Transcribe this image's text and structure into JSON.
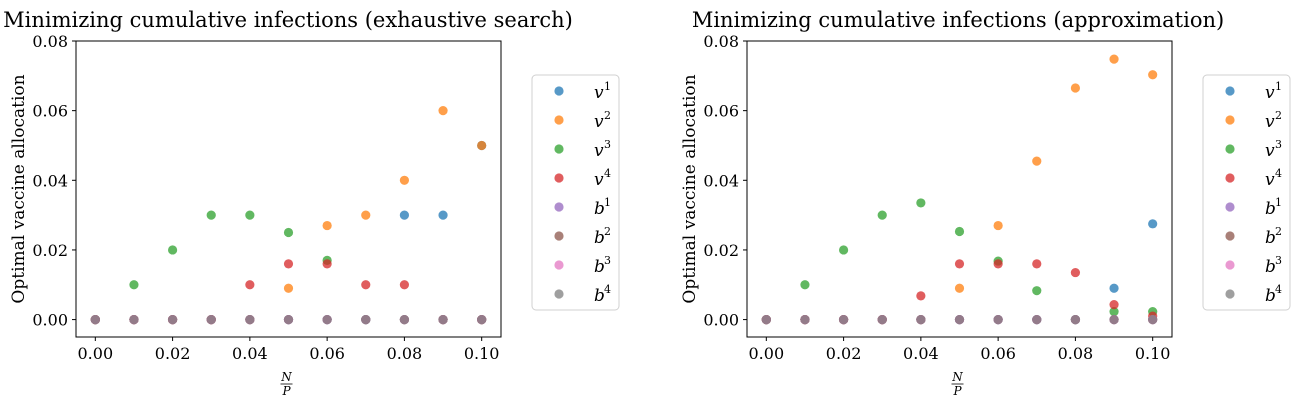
{
  "chart_data": [
    {
      "type": "scatter",
      "title": "Minimizing cumulative infections (exhaustive search)",
      "xlabel": "N/P",
      "ylabel": "Optimal vaccine allocation",
      "xlim": [
        -0.005,
        0.105
      ],
      "ylim": [
        -0.005,
        0.08
      ],
      "x_ticks": [
        "0.00",
        "0.02",
        "0.04",
        "0.06",
        "0.08",
        "0.10"
      ],
      "y_ticks": [
        "0.00",
        "0.02",
        "0.04",
        "0.06",
        "0.08"
      ],
      "grid": false,
      "legend_position": "right",
      "x": [
        0.0,
        0.01,
        0.02,
        0.03,
        0.04,
        0.05,
        0.06,
        0.07,
        0.08,
        0.09,
        0.1
      ],
      "series": [
        {
          "name": "v1",
          "color": "#1f77b4",
          "values": [
            0,
            0,
            0,
            0,
            0,
            0,
            0,
            0,
            0.03,
            0.03,
            0.05
          ]
        },
        {
          "name": "v2",
          "color": "#ff7f0e",
          "values": [
            0,
            0,
            0,
            0,
            0,
            0.009,
            0.027,
            0.03,
            0.04,
            0.06,
            0.05
          ]
        },
        {
          "name": "v3",
          "color": "#2ca02c",
          "values": [
            0,
            0.01,
            0.02,
            0.03,
            0.03,
            0.025,
            0.017,
            0,
            0,
            0,
            0
          ]
        },
        {
          "name": "v4",
          "color": "#d62728",
          "values": [
            0,
            0,
            0,
            0,
            0.01,
            0.016,
            0.016,
            0.01,
            0.01,
            0,
            0
          ]
        },
        {
          "name": "b1",
          "color": "#9467bd",
          "values": [
            0,
            0,
            0,
            0,
            0,
            0,
            0,
            0,
            0,
            0,
            0
          ]
        },
        {
          "name": "b2",
          "color": "#8c564b",
          "values": [
            0,
            0,
            0,
            0,
            0,
            0,
            0,
            0,
            0,
            0,
            0
          ]
        },
        {
          "name": "b3",
          "color": "#e377c2",
          "values": [
            0,
            0,
            0,
            0,
            0,
            0,
            0,
            0,
            0,
            0,
            0
          ]
        },
        {
          "name": "b4",
          "color": "#7f7f7f",
          "values": [
            0,
            0,
            0,
            0,
            0,
            0,
            0,
            0,
            0,
            0,
            0
          ]
        }
      ]
    },
    {
      "type": "scatter",
      "title": "Minimizing cumulative infections (approximation)",
      "xlabel": "N/P",
      "ylabel": "Optimal vaccine allocation",
      "xlim": [
        -0.005,
        0.105
      ],
      "ylim": [
        -0.005,
        0.08
      ],
      "x_ticks": [
        "0.00",
        "0.02",
        "0.04",
        "0.06",
        "0.08",
        "0.10"
      ],
      "y_ticks": [
        "0.00",
        "0.02",
        "0.04",
        "0.06",
        "0.08"
      ],
      "grid": false,
      "legend_position": "right",
      "x": [
        0.0,
        0.01,
        0.02,
        0.03,
        0.04,
        0.05,
        0.06,
        0.07,
        0.08,
        0.09,
        0.1
      ],
      "series": [
        {
          "name": "v1",
          "color": "#1f77b4",
          "values": [
            0,
            0,
            0,
            0,
            0,
            0,
            0,
            0,
            0,
            0.009,
            0.0275
          ]
        },
        {
          "name": "v2",
          "color": "#ff7f0e",
          "values": [
            0,
            0,
            0,
            0,
            0,
            0.009,
            0.027,
            0.0455,
            0.0665,
            0.0748,
            0.0703
          ]
        },
        {
          "name": "v3",
          "color": "#2ca02c",
          "values": [
            0,
            0.01,
            0.02,
            0.03,
            0.0335,
            0.0253,
            0.0168,
            0.0083,
            0,
            0.0023,
            0.0023
          ]
        },
        {
          "name": "v4",
          "color": "#d62728",
          "values": [
            0,
            0,
            0,
            0,
            0.0068,
            0.016,
            0.016,
            0.016,
            0.0135,
            0.0043,
            0.001
          ]
        },
        {
          "name": "b1",
          "color": "#9467bd",
          "values": [
            0,
            0,
            0,
            0,
            0,
            0,
            0,
            0,
            0,
            0,
            0
          ]
        },
        {
          "name": "b2",
          "color": "#8c564b",
          "values": [
            0,
            0,
            0,
            0,
            0,
            0,
            0,
            0,
            0,
            0,
            0
          ]
        },
        {
          "name": "b3",
          "color": "#e377c2",
          "values": [
            0,
            0,
            0,
            0,
            0,
            0,
            0,
            0,
            0,
            0,
            0
          ]
        },
        {
          "name": "b4",
          "color": "#7f7f7f",
          "values": [
            0,
            0,
            0,
            0,
            0,
            0,
            0,
            0,
            0,
            0,
            0
          ]
        }
      ]
    }
  ]
}
